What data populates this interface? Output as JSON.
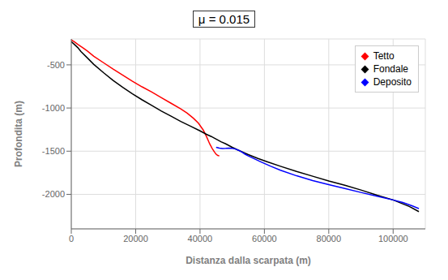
{
  "chart_data": {
    "type": "line",
    "title": "μ = 0.015",
    "xlabel": "Distanza dalla scarpata (m)",
    "ylabel": "Profondita (m)",
    "xlim": [
      0,
      110000
    ],
    "ylim": [
      -2400,
      -200
    ],
    "xticks": [
      0,
      20000,
      40000,
      60000,
      80000,
      100000
    ],
    "yticks": [
      -500,
      -1000,
      -1500,
      -2000
    ],
    "grid": true,
    "legend": "upper right",
    "series": [
      {
        "name": "Tetto",
        "color": "#ff0000",
        "x": [
          0,
          1000,
          2000,
          3500,
          5000,
          7000,
          10000,
          13000,
          16000,
          19000,
          22000,
          25000,
          28000,
          31000,
          34000,
          36000,
          38000,
          39500,
          41000,
          42000,
          43000,
          43800,
          44500,
          45000,
          45500,
          46000
        ],
        "values": [
          -210,
          -235,
          -262,
          -300,
          -340,
          -400,
          -475,
          -550,
          -620,
          -690,
          -755,
          -815,
          -880,
          -945,
          -1010,
          -1060,
          -1120,
          -1175,
          -1255,
          -1330,
          -1415,
          -1470,
          -1510,
          -1535,
          -1550,
          -1555
        ]
      },
      {
        "name": "Fondale",
        "color": "#000000",
        "x": [
          0,
          1000,
          2000,
          3000,
          5000,
          7000,
          10000,
          13000,
          16000,
          19000,
          22000,
          25000,
          28000,
          31000,
          34000,
          37000,
          40000,
          42000,
          43500,
          45000,
          46500,
          48000,
          50000,
          52000,
          55000,
          58000,
          61000,
          65000,
          70000,
          75000,
          80000,
          85000,
          90000,
          95000,
          100000,
          105000,
          108000
        ],
        "values": [
          -230,
          -265,
          -300,
          -345,
          -420,
          -495,
          -590,
          -680,
          -760,
          -835,
          -905,
          -970,
          -1035,
          -1095,
          -1155,
          -1210,
          -1265,
          -1305,
          -1330,
          -1360,
          -1390,
          -1415,
          -1455,
          -1490,
          -1540,
          -1585,
          -1625,
          -1675,
          -1735,
          -1790,
          -1845,
          -1895,
          -1950,
          -2010,
          -2065,
          -2140,
          -2200
        ]
      },
      {
        "name": "Deposito",
        "color": "#0000ff",
        "x": [
          45000,
          46000,
          47000,
          48000,
          49000,
          50000,
          51000,
          52000,
          53000,
          54000,
          55000,
          57000,
          59000,
          62000,
          65000,
          70000,
          75000,
          80000,
          85000,
          90000,
          95000,
          100000,
          103000,
          106000,
          108000
        ],
        "values": [
          -1455,
          -1465,
          -1470,
          -1468,
          -1465,
          -1468,
          -1475,
          -1490,
          -1510,
          -1535,
          -1555,
          -1590,
          -1625,
          -1675,
          -1720,
          -1785,
          -1840,
          -1888,
          -1933,
          -1978,
          -2022,
          -2065,
          -2095,
          -2135,
          -2165
        ]
      }
    ]
  }
}
